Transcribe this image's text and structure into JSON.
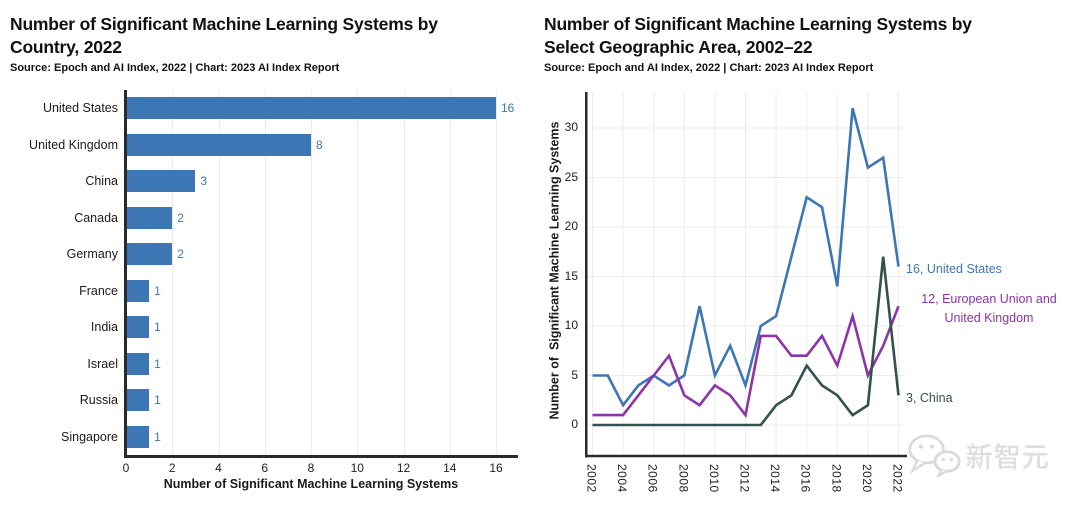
{
  "watermark": {
    "text": "新智元",
    "icon": "wechat-chat-bubbles-icon"
  },
  "chart_data": [
    {
      "type": "bar",
      "orientation": "horizontal",
      "title": "Number of Significant Machine Learning Systems by Country, 2022",
      "title_line1": "Number of Significant Machine Learning Systems by",
      "title_line2": "Country, 2022",
      "source": "Source: Epoch and AI Index, 2022 | Chart: 2023 AI Index Report",
      "xlabel": "Number of Significant Machine Learning Systems",
      "categories": [
        "United States",
        "United Kingdom",
        "China",
        "Canada",
        "Germany",
        "France",
        "India",
        "Israel",
        "Russia",
        "Singapore"
      ],
      "values": [
        16,
        8,
        3,
        2,
        2,
        1,
        1,
        1,
        1,
        1
      ],
      "x_ticks": [
        0,
        2,
        4,
        6,
        8,
        10,
        12,
        14,
        16
      ],
      "xlim": [
        0,
        16
      ],
      "bar_color": "#3d76b4",
      "grid": "vertical-only",
      "legend": "none"
    },
    {
      "type": "line",
      "title": "Number of Significant Machine Learning Systems by Select Geographic Area, 2002–22",
      "title_line1": "Number of Significant Machine Learning Systems by",
      "title_line2": "Select Geographic Area, 2002–22",
      "source": "Source: Epoch and AI Index, 2022 | Chart: 2023 AI Index Report",
      "ylabel": "Number of  Significant Machine Learning Systems",
      "x": [
        2002,
        2003,
        2004,
        2005,
        2006,
        2007,
        2008,
        2009,
        2010,
        2011,
        2012,
        2013,
        2014,
        2015,
        2016,
        2017,
        2018,
        2019,
        2020,
        2021,
        2022
      ],
      "x_ticks": [
        2002,
        2004,
        2006,
        2008,
        2010,
        2012,
        2014,
        2016,
        2018,
        2020,
        2022
      ],
      "y_ticks": [
        0,
        5,
        10,
        15,
        20,
        25,
        30
      ],
      "ylim": [
        0,
        33
      ],
      "grid": "both",
      "series": [
        {
          "name": "United States",
          "color": "#3d76b4",
          "values": [
            5,
            5,
            2,
            4,
            5,
            4,
            5,
            12,
            5,
            8,
            4,
            10,
            11,
            17,
            23,
            22,
            14,
            32,
            26,
            27,
            16
          ]
        },
        {
          "name": "European Union and United Kingdom",
          "color": "#8b35a8",
          "values": [
            1,
            1,
            1,
            3,
            5,
            7,
            3,
            2,
            4,
            3,
            1,
            9,
            9,
            7,
            7,
            9,
            6,
            11,
            5,
            8,
            12
          ]
        },
        {
          "name": "China",
          "color": "#33514e",
          "values": [
            0,
            0,
            0,
            0,
            0,
            0,
            0,
            0,
            0,
            0,
            0,
            0,
            2,
            3,
            6,
            4,
            3,
            1,
            2,
            17,
            3
          ]
        }
      ],
      "annotations": [
        {
          "text": "16, United States",
          "color": "#3d76b4"
        },
        {
          "text": "12, European Union and\nUnited Kingdom",
          "color": "#8b35a8"
        },
        {
          "text": "3, China",
          "color": "#33514e"
        }
      ]
    }
  ]
}
